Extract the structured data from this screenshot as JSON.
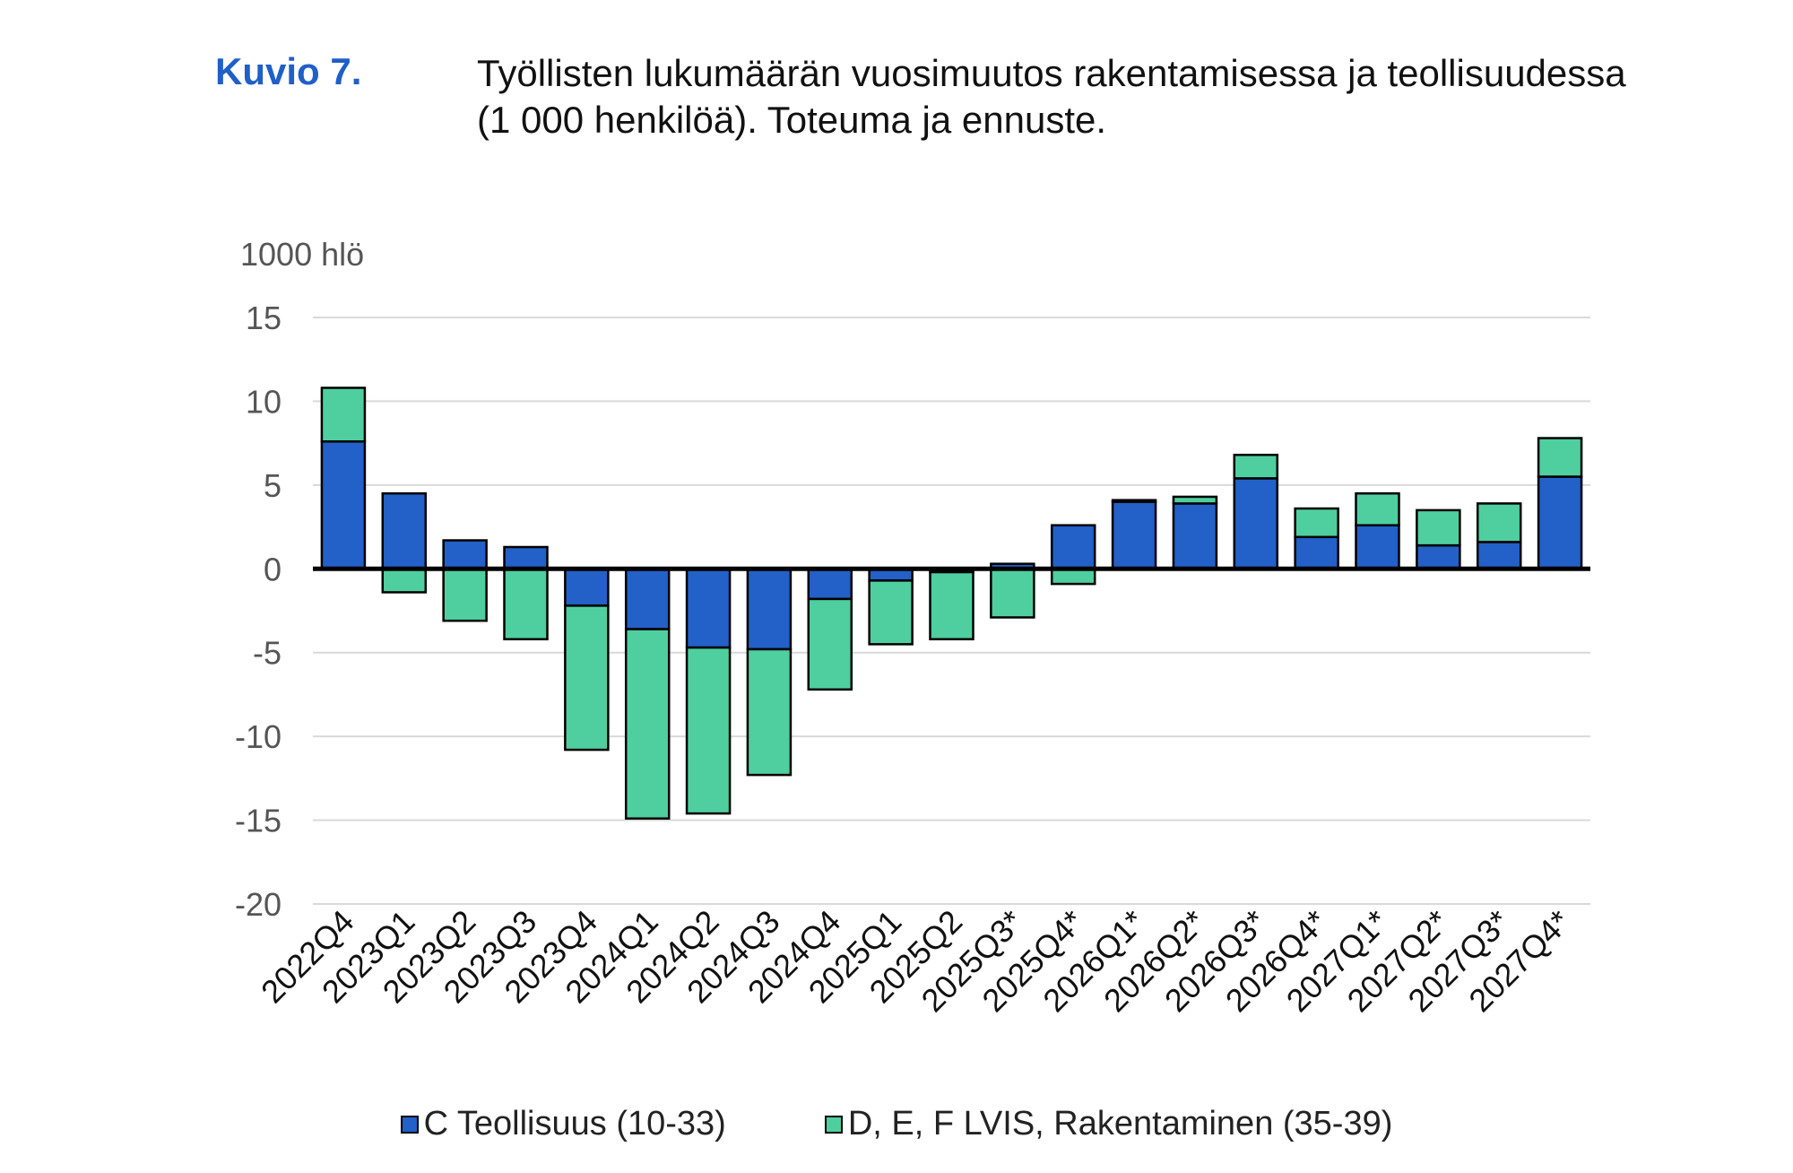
{
  "figure_label": "Kuvio 7.",
  "chart_data": {
    "type": "bar",
    "stacked": true,
    "title": "Työllisten lukumäärän vuosimuutos rakentamisessa ja teollisuudessa (1 000 henkilöä). Toteuma ja ennuste.",
    "ylabel": "1000 hlö",
    "xlabel": "",
    "ylim": [
      -20,
      15
    ],
    "yticks": [
      15,
      10,
      5,
      0,
      -5,
      -10,
      -15,
      -20
    ],
    "grid": true,
    "legend_position": "bottom",
    "categories": [
      "2022Q4",
      "2023Q1",
      "2023Q2",
      "2023Q3",
      "2023Q4",
      "2024Q1",
      "2024Q2",
      "2024Q3",
      "2024Q4",
      "2025Q1",
      "2025Q2",
      "2025Q3*",
      "2025Q4*",
      "2026Q1*",
      "2026Q2*",
      "2026Q3*",
      "2026Q4*",
      "2027Q1*",
      "2027Q2*",
      "2027Q3*",
      "2027Q4*"
    ],
    "series": [
      {
        "name": "C Teollisuus (10-33)",
        "color": "#2360c8",
        "values": [
          7.6,
          4.5,
          1.7,
          1.3,
          -2.2,
          -3.6,
          -4.7,
          -4.8,
          -1.8,
          -0.7,
          -0.2,
          0.3,
          2.6,
          4.0,
          3.9,
          5.4,
          1.9,
          2.6,
          1.4,
          1.6,
          5.5
        ]
      },
      {
        "name": "D, E, F LVIS, Rakentaminen (35-39)",
        "color": "#4fcf9f",
        "values": [
          3.2,
          -1.4,
          -3.1,
          -4.2,
          -8.6,
          -11.3,
          -9.9,
          -7.5,
          -5.4,
          -3.8,
          -4.0,
          -2.9,
          -0.9,
          0.1,
          0.4,
          1.4,
          1.7,
          1.9,
          2.1,
          2.3,
          2.3
        ]
      }
    ]
  }
}
